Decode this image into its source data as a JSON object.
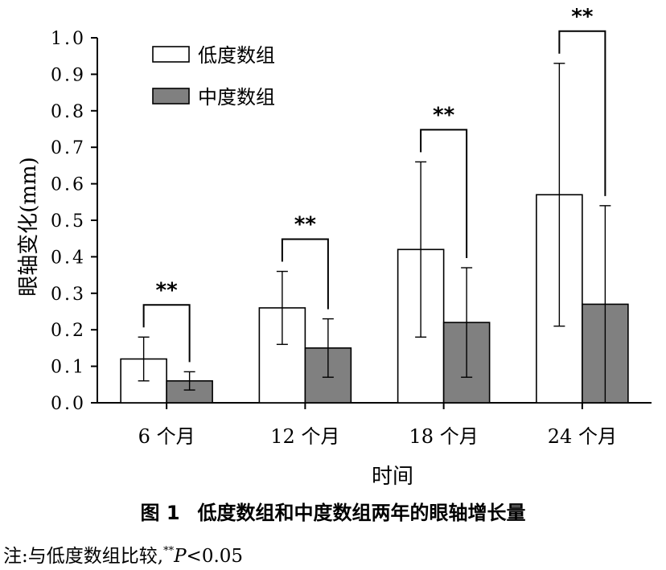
{
  "chart_data": {
    "type": "bar",
    "categories": [
      "6 个月",
      "12 个月",
      "18 个月",
      "24 个月"
    ],
    "series": [
      {
        "name": "低度数组",
        "values": [
          0.12,
          0.26,
          0.42,
          0.57
        ],
        "err": [
          0.06,
          0.1,
          0.24,
          0.36
        ],
        "color": "#ffffff"
      },
      {
        "name": "中度数组",
        "values": [
          0.06,
          0.15,
          0.22,
          0.27
        ],
        "err": [
          0.025,
          0.08,
          0.15,
          0.27
        ],
        "color": "#808080"
      }
    ],
    "significance": [
      "**",
      "**",
      "**",
      "**"
    ],
    "xlabel": "时间",
    "ylabel": "眼轴变化(mm)",
    "ylim": [
      0,
      1.0
    ],
    "yticks": [
      "0.0",
      "0.1",
      "0.2",
      "0.3",
      "0.4",
      "0.5",
      "0.6",
      "0.7",
      "0.8",
      "0.9",
      "1.0"
    ],
    "legend_position": "top-left",
    "grid": false
  },
  "caption": {
    "number": "图 1",
    "text": "低度数组和中度数组两年的眼轴增长量"
  },
  "note": {
    "prefix": "注:与低度数组比较,",
    "sup": "**",
    "p": "P",
    "rest": "<0.05"
  }
}
